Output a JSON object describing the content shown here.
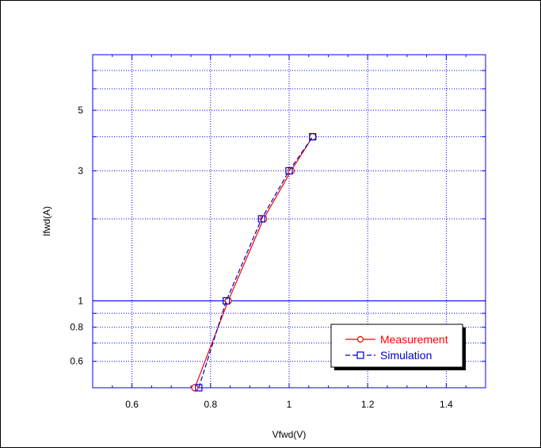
{
  "chart_data": {
    "type": "line",
    "xlabel": "Vfwd(V)",
    "ylabel": "Ifwd(A)",
    "xscale": "linear",
    "yscale": "log",
    "xlim": [
      0.5,
      1.5
    ],
    "ylim": [
      0.48,
      8
    ],
    "xticks": [
      0.6,
      0.8,
      1,
      1.2,
      1.4
    ],
    "xtick_labels": [
      "0.6",
      "0.8",
      "1",
      "1.2",
      "1.4"
    ],
    "yticks": [
      0.6,
      0.8,
      1,
      3,
      5
    ],
    "ytick_labels": [
      "0.6",
      "0.8",
      "1",
      "3",
      "5"
    ],
    "grid": true,
    "legend_position": "bottom-right",
    "series": [
      {
        "name": "Measurement",
        "color": "#ff0000",
        "marker": "circle",
        "line": "solid",
        "x": [
          0.76,
          0.845,
          0.935,
          1.005,
          1.06
        ],
        "y": [
          0.48,
          1.0,
          2.0,
          3.0,
          4.0
        ]
      },
      {
        "name": "Simulation",
        "color": "#0000cc",
        "marker": "square",
        "line": "dashed",
        "x": [
          0.77,
          0.84,
          0.93,
          1.0,
          1.06
        ],
        "y": [
          0.48,
          1.0,
          2.0,
          3.0,
          4.0
        ]
      }
    ]
  }
}
